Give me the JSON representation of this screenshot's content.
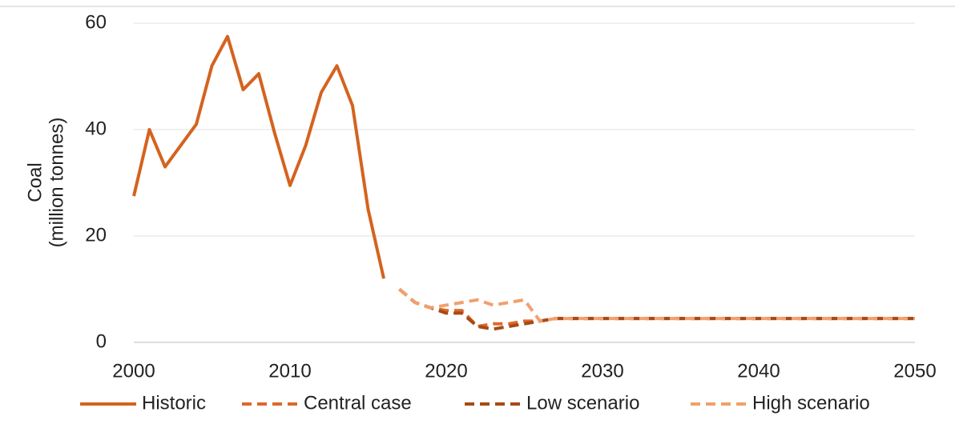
{
  "chart_data": {
    "type": "line",
    "y_label": [
      "Coal",
      "(million tonnes)"
    ],
    "x": [
      2000,
      2001,
      2002,
      2003,
      2004,
      2005,
      2006,
      2007,
      2008,
      2009,
      2010,
      2011,
      2012,
      2013,
      2014,
      2015,
      2016,
      2017,
      2018,
      2019,
      2020,
      2021,
      2022,
      2023,
      2024,
      2025,
      2026,
      2027,
      2028,
      2029,
      2030,
      2031,
      2032,
      2033,
      2034,
      2035,
      2036,
      2037,
      2038,
      2039,
      2040,
      2041,
      2042,
      2043,
      2044,
      2045,
      2046,
      2047,
      2048,
      2049,
      2050
    ],
    "xlim": [
      2000,
      2050
    ],
    "xticks": [
      2000,
      2010,
      2020,
      2030,
      2040,
      2050
    ],
    "ylim": [
      0,
      60
    ],
    "yticks": [
      0,
      20,
      40,
      60
    ],
    "grid": true,
    "legend": "bottom",
    "series": [
      {
        "name": "Historic",
        "color": "#d4631f",
        "dash": false,
        "values": [
          27.5,
          40,
          33,
          37,
          41,
          52,
          57.5,
          47.5,
          50.5,
          39.5,
          29.5,
          37,
          47,
          52,
          44.5,
          25,
          12,
          null,
          null,
          null,
          null,
          null,
          null,
          null,
          null,
          null,
          null,
          null,
          null,
          null,
          null,
          null,
          null,
          null,
          null,
          null,
          null,
          null,
          null,
          null,
          null,
          null,
          null,
          null,
          null,
          null,
          null,
          null,
          null,
          null,
          null
        ]
      },
      {
        "name": "Central case",
        "color": "#dc6a2a",
        "dash": true,
        "values": [
          null,
          null,
          null,
          null,
          null,
          null,
          null,
          null,
          null,
          null,
          null,
          null,
          null,
          null,
          null,
          null,
          null,
          10,
          7.5,
          6.5,
          6,
          6,
          3,
          3.5,
          3.5,
          4,
          4,
          4.5,
          4.5,
          4.5,
          4.5,
          4.5,
          4.5,
          4.5,
          4.5,
          4.5,
          4.5,
          4.5,
          4.5,
          4.5,
          4.5,
          4.5,
          4.5,
          4.5,
          4.5,
          4.5,
          4.5,
          4.5,
          4.5,
          4.5,
          4.5
        ]
      },
      {
        "name": "Low scenario",
        "color": "#a64a16",
        "dash": true,
        "values": [
          null,
          null,
          null,
          null,
          null,
          null,
          null,
          null,
          null,
          null,
          null,
          null,
          null,
          null,
          null,
          null,
          null,
          10,
          7.5,
          6.5,
          5.5,
          5.5,
          3,
          2.5,
          3,
          3.5,
          4,
          4.5,
          4.5,
          4.5,
          4.5,
          4.5,
          4.5,
          4.5,
          4.5,
          4.5,
          4.5,
          4.5,
          4.5,
          4.5,
          4.5,
          4.5,
          4.5,
          4.5,
          4.5,
          4.5,
          4.5,
          4.5,
          4.5,
          4.5,
          4.5
        ]
      },
      {
        "name": "High scenario",
        "color": "#f1a06e",
        "dash": true,
        "values": [
          null,
          null,
          null,
          null,
          null,
          null,
          null,
          null,
          null,
          null,
          null,
          null,
          null,
          null,
          null,
          null,
          null,
          10,
          7.5,
          6.5,
          7,
          7.5,
          8,
          7,
          7.5,
          8,
          4,
          4.5,
          4.5,
          4.5,
          4.5,
          4.5,
          4.5,
          4.5,
          4.5,
          4.5,
          4.5,
          4.5,
          4.5,
          4.5,
          4.5,
          4.5,
          4.5,
          4.5,
          4.5,
          4.5,
          4.5,
          4.5,
          4.5,
          4.5,
          4.5
        ]
      }
    ]
  }
}
